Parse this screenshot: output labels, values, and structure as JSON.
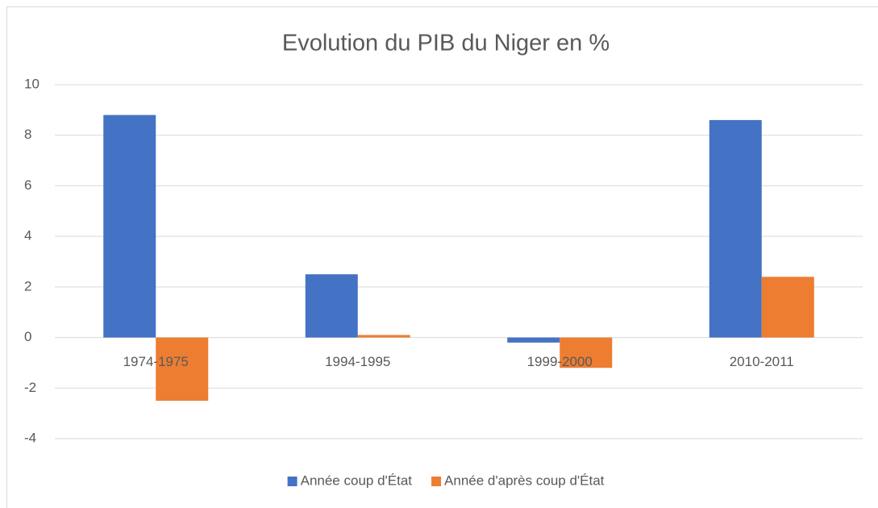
{
  "chart_data": {
    "type": "bar",
    "title": "Evolution du PIB du Niger en %",
    "categories": [
      "1974-1975",
      "1994-1995",
      "1999-2000",
      "2010-2011"
    ],
    "series": [
      {
        "name": "Année coup d'État",
        "color": "#4472c4",
        "values": [
          8.8,
          2.5,
          -0.2,
          8.6
        ]
      },
      {
        "name": "Année d'après coup d'État",
        "color": "#ed7d31",
        "values": [
          -2.5,
          0.1,
          -1.2,
          2.4
        ]
      }
    ],
    "ylim": [
      -4,
      10
    ],
    "yticks": [
      -4,
      -2,
      0,
      2,
      4,
      6,
      8,
      10
    ],
    "grid": true,
    "legend": "bottom"
  }
}
